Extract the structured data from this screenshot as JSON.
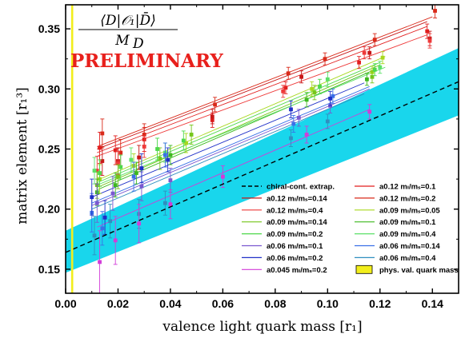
{
  "chart_data": {
    "type": "scatter",
    "xlabel": "valence light quark mass [r₁]",
    "ylabel": "matrix element [r₁³]",
    "xlim": [
      0,
      0.15
    ],
    "ylim": [
      0.13,
      0.37
    ],
    "x_ticks": [
      "0.00",
      "0.02",
      "0.04",
      "0.06",
      "0.08",
      "0.10",
      "0.12",
      "0.14"
    ],
    "y_ticks": [
      "0.15",
      "0.20",
      "0.25",
      "0.30",
      "0.35"
    ],
    "annotation_formula": "⟨D|𝒪₁|D̄⟩ / M_D",
    "formula_numerator": "⟨D|𝒪₁|D̄⟩",
    "formula_denominator": "M",
    "formula_denominator_sub": "D",
    "annotation_text": "PRELIMINARY",
    "legend_placement": "bottom-right",
    "grid": false,
    "band": {
      "x": [
        0,
        0.15
      ],
      "lower": [
        0.147,
        0.278
      ],
      "upper": [
        0.182,
        0.334
      ],
      "color": "#19d6ec"
    },
    "chiral_line": {
      "name": "chiral-cont. extrap.",
      "x": [
        0,
        0.15
      ],
      "y": [
        0.164,
        0.306
      ],
      "color": "#000000"
    },
    "phys_mass": {
      "name": "phys. val. quark mass",
      "x": 0.0025,
      "color": "#f2ee1c"
    },
    "series": [
      {
        "name": "a0.12 mₗ/mₛ=0.1",
        "color": "#e21e1e",
        "fit": [
          0.012,
          0.247,
          0.138,
          0.352
        ],
        "points": [
          [
            0.013,
            0.251,
            0.013
          ],
          [
            0.019,
            0.249,
            0.012
          ],
          [
            0.03,
            0.258,
            0.01
          ],
          [
            0.056,
            0.274,
            0.006
          ],
          [
            0.084,
            0.301,
            0.005
          ],
          [
            0.112,
            0.322,
            0.005
          ],
          [
            0.138,
            0.348,
            0.006
          ]
        ]
      },
      {
        "name": "a0.12 mₗ/mₛ=0.14",
        "color": "#c81818",
        "fit": [
          0.012,
          0.25,
          0.138,
          0.356
        ],
        "points": [
          [
            0.014,
            0.24,
            0.012
          ],
          [
            0.02,
            0.24,
            0.011
          ],
          [
            0.028,
            0.243,
            0.01
          ],
          [
            0.056,
            0.277,
            0.006
          ],
          [
            0.09,
            0.31,
            0.005
          ],
          [
            0.116,
            0.33,
            0.005
          ],
          [
            0.139,
            0.342,
            0.006
          ]
        ]
      },
      {
        "name": "a0.12 mₗ/mₛ=0.2",
        "color": "#d92a1a",
        "fit": [
          0.012,
          0.252,
          0.14,
          0.36
        ],
        "points": [
          [
            0.014,
            0.263,
            0.012
          ],
          [
            0.021,
            0.247,
            0.011
          ],
          [
            0.03,
            0.262,
            0.009
          ],
          [
            0.057,
            0.287,
            0.006
          ],
          [
            0.085,
            0.313,
            0.005
          ],
          [
            0.099,
            0.325,
            0.005
          ],
          [
            0.118,
            0.341,
            0.005
          ],
          [
            0.141,
            0.365,
            0.006
          ]
        ]
      },
      {
        "name": "a0.12 mₗ/mₛ=0.4",
        "color": "#ee3a3a",
        "fit": [
          0.012,
          0.244,
          0.138,
          0.345
        ],
        "points": [
          [
            0.012,
            0.232,
            0.012
          ],
          [
            0.02,
            0.238,
            0.01
          ],
          [
            0.03,
            0.252,
            0.009
          ],
          [
            0.083,
            0.298,
            0.005
          ],
          [
            0.114,
            0.33,
            0.005
          ],
          [
            0.139,
            0.34,
            0.006
          ]
        ]
      },
      {
        "name": "a0.09 mₗ/mₛ=0.05",
        "color": "#a8d81e",
        "fit": [
          0.012,
          0.224,
          0.122,
          0.327
        ],
        "points": [
          [
            0.013,
            0.225,
            0.012
          ],
          [
            0.026,
            0.236,
            0.01
          ],
          [
            0.046,
            0.255,
            0.008
          ],
          [
            0.094,
            0.3,
            0.006
          ],
          [
            0.117,
            0.314,
            0.005
          ],
          [
            0.121,
            0.326,
            0.005
          ]
        ]
      },
      {
        "name": "a0.09 mₗ/mₛ=0.14",
        "color": "#76c61a",
        "fit": [
          0.012,
          0.218,
          0.12,
          0.32
        ],
        "points": [
          [
            0.012,
            0.22,
            0.011
          ],
          [
            0.02,
            0.227,
            0.01
          ],
          [
            0.036,
            0.242,
            0.009
          ],
          [
            0.048,
            0.262,
            0.008
          ],
          [
            0.095,
            0.297,
            0.006
          ],
          [
            0.117,
            0.31,
            0.005
          ]
        ]
      },
      {
        "name": "a0.09 mₗ/mₛ=0.1",
        "color": "#3db81e",
        "fit": [
          0.012,
          0.216,
          0.118,
          0.316
        ],
        "points": [
          [
            0.012,
            0.214,
            0.011
          ],
          [
            0.019,
            0.22,
            0.01
          ],
          [
            0.027,
            0.23,
            0.009
          ],
          [
            0.04,
            0.245,
            0.008
          ],
          [
            0.092,
            0.291,
            0.006
          ],
          [
            0.115,
            0.308,
            0.005
          ]
        ]
      },
      {
        "name": "a0.09 mₗ/mₛ=0.2",
        "color": "#4ed84a",
        "fit": [
          0.012,
          0.222,
          0.12,
          0.322
        ],
        "points": [
          [
            0.013,
            0.23,
            0.011
          ],
          [
            0.021,
            0.235,
            0.01
          ],
          [
            0.035,
            0.25,
            0.009
          ],
          [
            0.045,
            0.257,
            0.008
          ],
          [
            0.097,
            0.302,
            0.006
          ],
          [
            0.118,
            0.316,
            0.005
          ]
        ]
      },
      {
        "name": "a0.09 mₗ/mₛ=0.4",
        "color": "#5ce068",
        "fit": [
          0.012,
          0.22,
          0.122,
          0.318
        ],
        "points": [
          [
            0.011,
            0.232,
            0.011
          ],
          [
            0.025,
            0.241,
            0.01
          ],
          [
            0.038,
            0.247,
            0.008
          ],
          [
            0.1,
            0.308,
            0.006
          ],
          [
            0.12,
            0.318,
            0.005
          ]
        ]
      },
      {
        "name": "a0.06 mₗ/mₛ=0.1",
        "color": "#7a58d0",
        "fit": [
          0.01,
          0.203,
          0.116,
          0.3
        ],
        "points": [
          [
            0.012,
            0.205,
            0.016
          ],
          [
            0.018,
            0.213,
            0.014
          ],
          [
            0.029,
            0.219,
            0.012
          ],
          [
            0.04,
            0.224,
            0.01
          ],
          [
            0.089,
            0.276,
            0.007
          ],
          [
            0.101,
            0.286,
            0.006
          ]
        ]
      },
      {
        "name": "a0.06 mₗ/mₛ=0.14",
        "color": "#3a70e8",
        "fit": [
          0.01,
          0.205,
          0.116,
          0.302
        ],
        "points": [
          [
            0.01,
            0.197,
            0.016
          ],
          [
            0.014,
            0.184,
            0.014
          ],
          [
            0.026,
            0.227,
            0.012
          ],
          [
            0.038,
            0.245,
            0.01
          ],
          [
            0.087,
            0.271,
            0.007
          ],
          [
            0.102,
            0.294,
            0.006
          ]
        ]
      },
      {
        "name": "a0.06 mₗ/mₛ=0.2",
        "color": "#2030c8",
        "fit": [
          0.01,
          0.21,
          0.114,
          0.305
        ],
        "points": [
          [
            0.01,
            0.21,
            0.015
          ],
          [
            0.015,
            0.193,
            0.014
          ],
          [
            0.029,
            0.234,
            0.012
          ],
          [
            0.039,
            0.241,
            0.01
          ],
          [
            0.086,
            0.283,
            0.007
          ],
          [
            0.101,
            0.292,
            0.006
          ]
        ]
      },
      {
        "name": "a0.06 mₗ/mₛ=0.4",
        "color": "#2f8fbf",
        "fit": [
          0.01,
          0.2,
          0.114,
          0.296
        ],
        "points": [
          [
            0.011,
            0.178,
            0.016
          ],
          [
            0.017,
            0.19,
            0.014
          ],
          [
            0.028,
            0.196,
            0.012
          ],
          [
            0.038,
            0.205,
            0.01
          ],
          [
            0.086,
            0.259,
            0.007
          ],
          [
            0.1,
            0.273,
            0.006
          ]
        ]
      },
      {
        "name": "a0.045 mₗ/mₛ=0.2",
        "color": "#d23cd8",
        "fit": [
          0.012,
          0.185,
          0.116,
          0.283
        ],
        "points": [
          [
            0.013,
            0.156,
            0.026
          ],
          [
            0.019,
            0.174,
            0.02
          ],
          [
            0.028,
            0.188,
            0.016
          ],
          [
            0.04,
            0.204,
            0.012
          ],
          [
            0.06,
            0.227,
            0.009
          ],
          [
            0.092,
            0.262,
            0.007
          ],
          [
            0.116,
            0.281,
            0.006
          ]
        ]
      }
    ]
  }
}
